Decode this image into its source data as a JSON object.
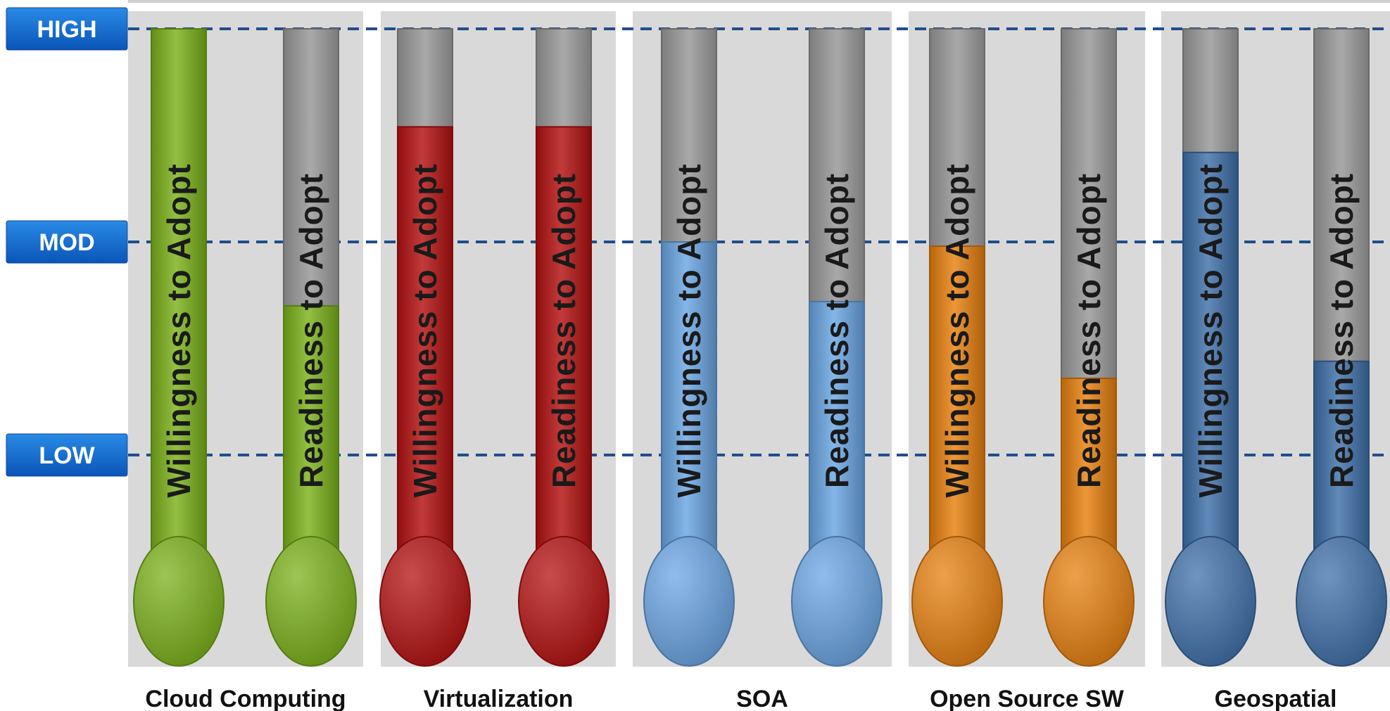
{
  "chart_data": {
    "type": "bar",
    "levels": [
      {
        "label": "HIGH",
        "value": 1.0
      },
      {
        "label": "MOD",
        "value": 0.5
      },
      {
        "label": "LOW",
        "value": 0.0
      }
    ],
    "series": [
      {
        "name": "Willingness to Adopt"
      },
      {
        "name": "Readiness to Adopt"
      }
    ],
    "categories": [
      {
        "name": "Cloud Computing",
        "color": "#7bb21a",
        "values": [
          1.0,
          0.35
        ]
      },
      {
        "name": "Virtualization",
        "color": "#b51010",
        "values": [
          0.77,
          0.77
        ]
      },
      {
        "name": "SOA",
        "color": "#6aa6e4",
        "values": [
          0.5,
          0.36
        ]
      },
      {
        "name": "Open Source SW",
        "color": "#e8800e",
        "values": [
          0.49,
          0.18
        ]
      },
      {
        "name": "Geospatial",
        "color": "#3f70aa",
        "values": [
          0.71,
          0.22
        ]
      }
    ],
    "ylim": [
      0,
      1
    ],
    "grid": true,
    "gridlines_at_levels": true
  }
}
